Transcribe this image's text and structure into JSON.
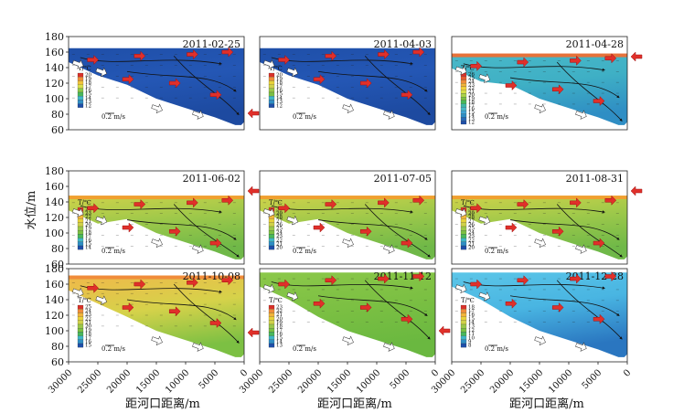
{
  "figure": {
    "ylabel": "水位/m",
    "xlabel": "距河口距离/m",
    "speed_label": "0.2 m/s",
    "temp_label": "T/℃",
    "y_ticks": [
      "180",
      "160",
      "140",
      "120",
      "100",
      "80",
      "60"
    ],
    "x_ticks": [
      "30000",
      "25000",
      "20000",
      "15000",
      "10000",
      "5000",
      "0"
    ],
    "colors": {
      "arrow_red": "#e0302a",
      "arrow_white": "#ffffff",
      "dark_blue": "#1f4fa8",
      "light_blue": "#5cc6e8",
      "green": "#7cc043",
      "yellow": "#e8d23a",
      "orange": "#f0a030",
      "streamline": "#111111"
    }
  },
  "chart_data": [
    {
      "type": "heatmap",
      "title": "2011-02-25",
      "xlim": [
        30000,
        0
      ],
      "ylim": [
        60,
        180
      ],
      "theme": "winter",
      "legend_ticks": [
        "20",
        "19",
        "18",
        "17",
        "16",
        "15",
        "14",
        "13",
        "12"
      ],
      "water_level": 165
    },
    {
      "type": "heatmap",
      "title": "2011-04-03",
      "xlim": [
        30000,
        0
      ],
      "ylim": [
        60,
        180
      ],
      "theme": "spring",
      "legend_ticks": [
        "20",
        "19",
        "18",
        "17",
        "16",
        "15",
        "14",
        "13",
        "12"
      ],
      "water_level": 165
    },
    {
      "type": "heatmap",
      "title": "2011-04-28",
      "xlim": [
        30000,
        0
      ],
      "ylim": [
        60,
        180
      ],
      "theme": "cool",
      "legend_ticks": [
        "26",
        "25",
        "24",
        "23",
        "22",
        "21",
        "20",
        "19",
        "18",
        "17",
        "16",
        "15",
        "14",
        "13",
        "12"
      ],
      "water_level": 157
    },
    {
      "type": "heatmap",
      "title": "2011-06-02",
      "xlim": [
        30000,
        0
      ],
      "ylim": [
        60,
        180
      ],
      "theme": "summer",
      "legend_ticks": [
        "24",
        "23",
        "22",
        "21",
        "20",
        "19",
        "18",
        "17",
        "16",
        "15",
        "14"
      ],
      "water_level": 147
    },
    {
      "type": "heatmap",
      "title": "2011-07-05",
      "xlim": [
        30000,
        0
      ],
      "ylim": [
        60,
        180
      ],
      "theme": "summer",
      "legend_ticks": [
        "30",
        "29",
        "28",
        "27",
        "26",
        "25",
        "24",
        "23",
        "22",
        "21",
        "20"
      ],
      "water_level": 147
    },
    {
      "type": "heatmap",
      "title": "2011-08-31",
      "xlim": [
        30000,
        0
      ],
      "ylim": [
        60,
        180
      ],
      "theme": "summer",
      "legend_ticks": [
        "30",
        "29",
        "28",
        "27",
        "26",
        "25",
        "24",
        "23",
        "22",
        "21",
        "20"
      ],
      "water_level": 147
    },
    {
      "type": "heatmap",
      "title": "2011-10-08",
      "xlim": [
        30000,
        0
      ],
      "ylim": [
        60,
        180
      ],
      "theme": "autumn",
      "legend_ticks": [
        "25",
        "24",
        "23",
        "22",
        "21",
        "20",
        "19",
        "18",
        "17",
        "16",
        "15"
      ],
      "water_level": 170
    },
    {
      "type": "heatmap",
      "title": "2011-11-12",
      "xlim": [
        30000,
        0
      ],
      "ylim": [
        60,
        180
      ],
      "theme": "late",
      "legend_ticks": [
        "23",
        "22",
        "21",
        "20",
        "19",
        "18",
        "17",
        "16",
        "15",
        "14",
        "13"
      ],
      "water_level": 175
    },
    {
      "type": "heatmap",
      "title": "2011-12-28",
      "xlim": [
        30000,
        0
      ],
      "ylim": [
        60,
        180
      ],
      "theme": "icy",
      "legend_ticks": [
        "18",
        "17",
        "16",
        "15",
        "14",
        "13",
        "12",
        "11",
        "10",
        "9",
        "8"
      ],
      "water_level": 175
    }
  ]
}
